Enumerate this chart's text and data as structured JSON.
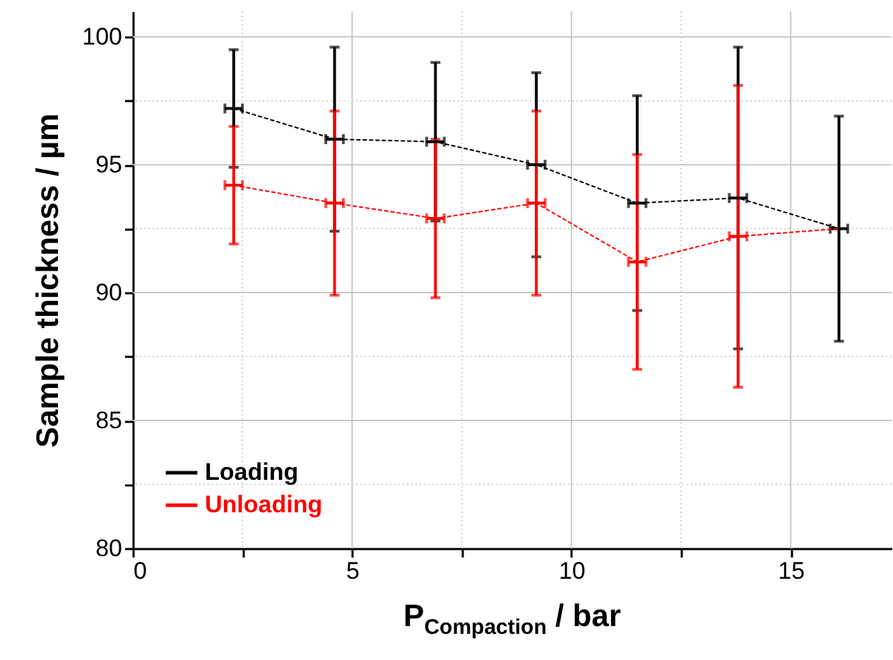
{
  "chart_data": {
    "type": "line",
    "xlabel": "P$_{Compaction}$ / bar",
    "ylabel": "Sample thickness / µm",
    "xlim": [
      0,
      17.3
    ],
    "ylim": [
      80,
      101
    ],
    "xticks": [
      0,
      {
        "value": 2.5,
        "label": null
      },
      5,
      {
        "value": 7.5,
        "label": null
      },
      10,
      {
        "value": 12.5,
        "label": null
      },
      15
    ],
    "yticks": [
      80,
      {
        "value": 82.5,
        "label": null
      },
      85,
      {
        "value": 87.5,
        "label": null
      },
      90,
      {
        "value": 92.5,
        "label": null
      },
      95,
      {
        "value": 97.5,
        "label": null
      },
      100
    ],
    "grid": true,
    "legend": "bottom left",
    "marker": "none",
    "line_style": "dashed",
    "series": [
      {
        "name": "Loading",
        "color": "#000000",
        "x": [
          2.3,
          4.6,
          6.9,
          9.2,
          11.5,
          13.8,
          16.1
        ],
        "values": [
          97.2,
          96.0,
          95.9,
          95.0,
          93.5,
          93.7,
          92.5
        ],
        "errors": [
          2.3,
          3.6,
          3.1,
          3.6,
          4.2,
          5.9,
          4.4
        ],
        "xerrors": [
          0.2,
          0.2,
          0.2,
          0.2,
          0.2,
          0.2,
          0.2
        ]
      },
      {
        "name": "Unloading",
        "color": "#ff0000",
        "x": [
          2.3,
          4.6,
          6.9,
          9.2,
          11.5,
          13.8,
          16.1
        ],
        "values": [
          94.2,
          93.5,
          92.9,
          93.5,
          91.2,
          92.2,
          92.5
        ],
        "errors": [
          2.3,
          3.6,
          3.1,
          3.6,
          4.2,
          5.9,
          null
        ],
        "xerrors": [
          0.2,
          0.2,
          0.2,
          0.2,
          0.2,
          0.2,
          null
        ]
      }
    ]
  }
}
